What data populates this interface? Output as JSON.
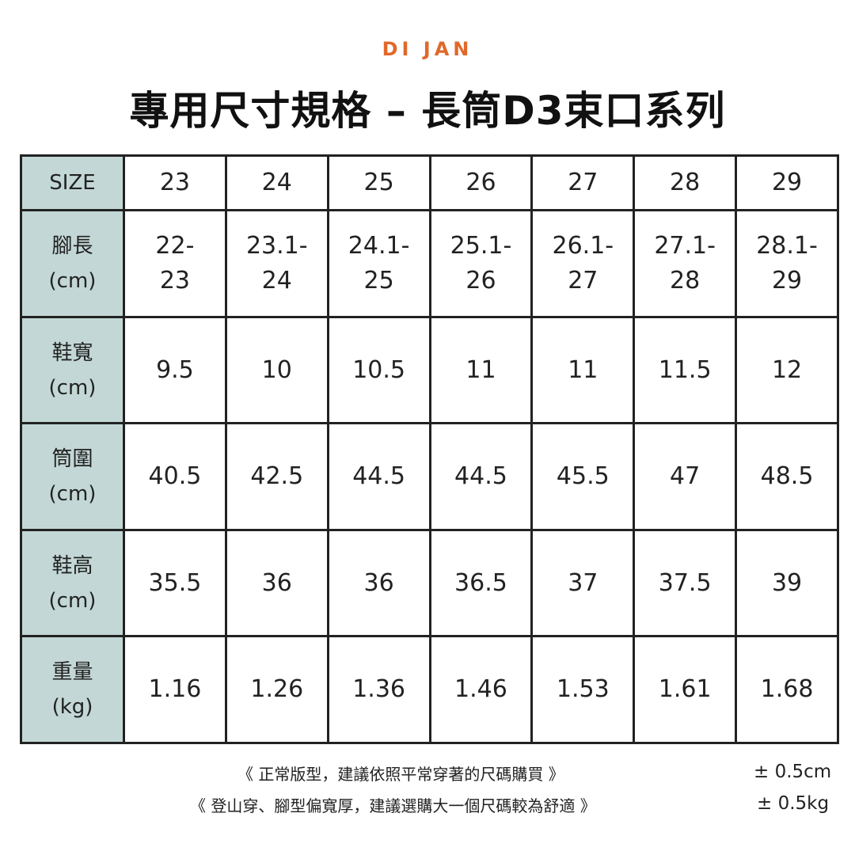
{
  "brand": "DI JAN",
  "title": "專用尺寸規格 – 長筒D3束口系列",
  "colors": {
    "brand": "#e0682a",
    "header_bg": "#c3d8d6",
    "border": "#222222"
  },
  "table": {
    "rows": [
      {
        "label": "SIZE",
        "values": [
          "23",
          "24",
          "25",
          "26",
          "27",
          "28",
          "29"
        ]
      },
      {
        "label": "腳長\n(cm)",
        "values": [
          "22-\n23",
          "23.1-\n24",
          "24.1-\n25",
          "25.1-\n26",
          "26.1-\n27",
          "27.1-\n28",
          "28.1-\n29"
        ]
      },
      {
        "label": "鞋寬\n(cm)",
        "values": [
          "9.5",
          "10",
          "10.5",
          "11",
          "11",
          "11.5",
          "12"
        ]
      },
      {
        "label": "筒圍\n(cm)",
        "values": [
          "40.5",
          "42.5",
          "44.5",
          "44.5",
          "45.5",
          "47",
          "48.5"
        ]
      },
      {
        "label": "鞋高\n(cm)",
        "values": [
          "35.5",
          "36",
          "36",
          "36.5",
          "37",
          "37.5",
          "39"
        ]
      },
      {
        "label": "重量\n(kg)",
        "values": [
          "1.16",
          "1.26",
          "1.36",
          "1.46",
          "1.53",
          "1.61",
          "1.68"
        ]
      }
    ]
  },
  "notes": {
    "line1": "《 正常版型，建議依照平常穿著的尺碼購買 》",
    "line2": "《 登山穿、腳型偏寬厚，建議選購大一個尺碼較為舒適 》",
    "tolerance_cm": "± 0.5cm",
    "tolerance_kg": "± 0.5kg"
  }
}
